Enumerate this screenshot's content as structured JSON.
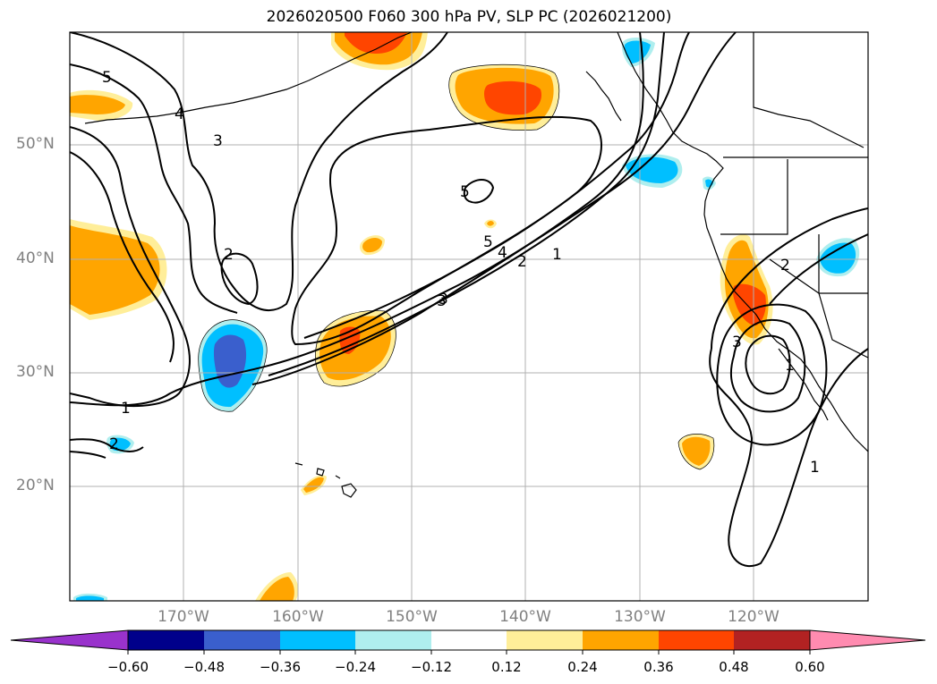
{
  "title": "2026020500 F060 300 hPa PV, SLP PC (2026021200)",
  "latitude_labels": [
    "50°N",
    "40°N",
    "30°N",
    "20°N"
  ],
  "longitude_labels": [
    "170°W",
    "160°W",
    "150°W",
    "140°W",
    "130°W",
    "120°W"
  ],
  "contour_labels": [
    "5",
    "4",
    "3",
    "3",
    "2",
    "1",
    "2",
    "5",
    "5",
    "4",
    "3",
    "2",
    "1",
    "2",
    "3",
    "1",
    "1"
  ],
  "colorbar": {
    "tick_labels": [
      "−0.60",
      "−0.48",
      "−0.36",
      "−0.24",
      "−0.12",
      "0.12",
      "0.24",
      "0.36",
      "0.48",
      "0.60"
    ],
    "colors": [
      "#9932cc",
      "#00008b",
      "#3a5fcd",
      "#00bfff",
      "#afeeee",
      "#ffffff",
      "#ffee99",
      "#ffa500",
      "#ff4500",
      "#b22222",
      "#ff8bb0"
    ]
  },
  "colors": {
    "text": "#000000",
    "axis_label": "#808080",
    "gridline": "#b0b0b0",
    "contour": "#000000",
    "coastline": "#000000"
  }
}
